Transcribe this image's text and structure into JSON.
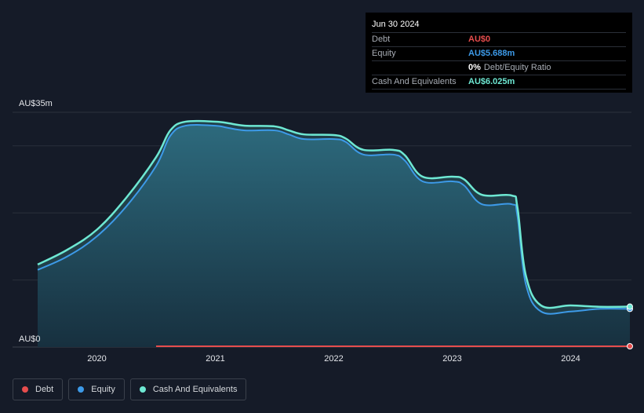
{
  "tooltip": {
    "date": "Jun 30 2024",
    "rows": [
      {
        "label": "Debt",
        "value": "AU$0",
        "color": "#e64d4d"
      },
      {
        "label": "Equity",
        "value": "AU$5.688m",
        "color": "#3d9ae8"
      },
      {
        "ratio_value": "0%",
        "ratio_label": "Debt/Equity Ratio"
      },
      {
        "label": "Cash And Equivalents",
        "value": "AU$6.025m",
        "color": "#6ee8d3"
      }
    ]
  },
  "legend": [
    {
      "label": "Debt",
      "color": "#e64d4d"
    },
    {
      "label": "Equity",
      "color": "#3d9ae8"
    },
    {
      "label": "Cash And Equivalents",
      "color": "#6ee8d3"
    }
  ],
  "colors": {
    "background": "#151b28",
    "grid": "#2a303b",
    "debt": "#e64d4d",
    "equity": "#3d9ae8",
    "cash": "#6ee8d3",
    "area_top": "#2d6a7d",
    "area_bottom": "#17303f"
  },
  "chart_data": {
    "type": "area",
    "y_tick_labels": [
      "AU$35m",
      "AU$0"
    ],
    "ylim": [
      0,
      35
    ],
    "xlim": [
      2019.5,
      2024.5
    ],
    "x_ticks": [
      2020,
      2021,
      2022,
      2023,
      2024
    ],
    "x_tick_labels": [
      "2020",
      "2021",
      "2022",
      "2023",
      "2024"
    ],
    "grid": true,
    "legend_position": "bottom-left",
    "series": [
      {
        "name": "Equity",
        "x": [
          2019.5,
          2019.75,
          2020.0,
          2020.25,
          2020.5,
          2020.62,
          2020.75,
          2021.0,
          2021.1,
          2021.25,
          2021.5,
          2021.62,
          2021.75,
          2022.0,
          2022.1,
          2022.25,
          2022.5,
          2022.6,
          2022.75,
          2023.0,
          2023.1,
          2023.25,
          2023.5,
          2023.55,
          2023.62,
          2023.75,
          2024.0,
          2024.25,
          2024.5
        ],
        "y": [
          11.5,
          13.5,
          16.5,
          21.0,
          27.0,
          31.5,
          33.0,
          33.0,
          32.7,
          32.3,
          32.3,
          31.7,
          31.0,
          31.0,
          30.6,
          28.7,
          28.7,
          27.8,
          24.7,
          24.7,
          24.1,
          21.3,
          21.3,
          19.6,
          9.5,
          5.3,
          5.3,
          5.7,
          5.688
        ]
      },
      {
        "name": "Cash And Equivalents",
        "x": [
          2019.5,
          2019.75,
          2020.0,
          2020.25,
          2020.5,
          2020.62,
          2020.75,
          2021.0,
          2021.1,
          2021.25,
          2021.5,
          2021.62,
          2021.75,
          2022.0,
          2022.1,
          2022.25,
          2022.5,
          2022.6,
          2022.75,
          2023.0,
          2023.1,
          2023.25,
          2023.5,
          2023.55,
          2023.62,
          2023.75,
          2024.0,
          2024.25,
          2024.5
        ],
        "y": [
          12.3,
          14.5,
          17.5,
          22.3,
          28.3,
          32.3,
          33.6,
          33.6,
          33.4,
          33.0,
          32.9,
          32.3,
          31.7,
          31.6,
          31.1,
          29.4,
          29.4,
          28.6,
          25.4,
          25.4,
          25.0,
          22.7,
          22.6,
          20.9,
          10.8,
          6.2,
          6.2,
          6.0,
          6.025
        ]
      },
      {
        "name": "Debt",
        "x": [
          2020.5,
          2024.5
        ],
        "y": [
          0,
          0
        ]
      }
    ]
  }
}
